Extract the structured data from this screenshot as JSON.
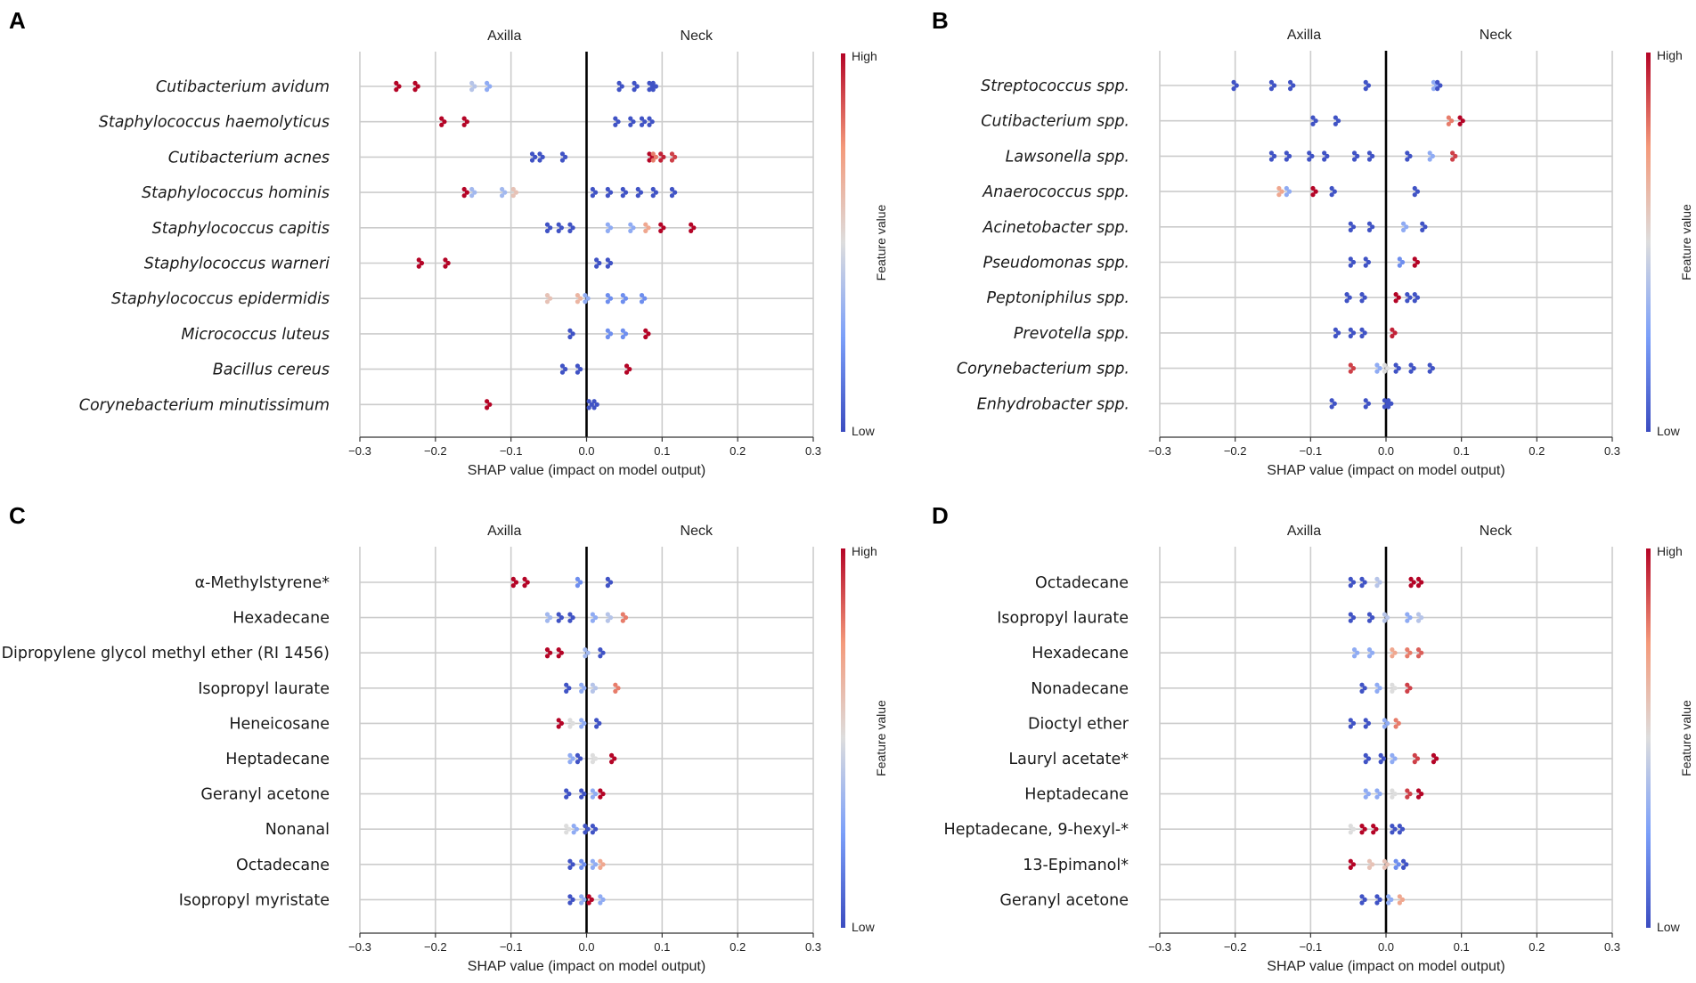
{
  "figure": {
    "colors": {
      "low": "#3b4cc0",
      "mid": "#dddddd",
      "high": "#b40426"
    },
    "colorbar": {
      "high_label": "High",
      "low_label": "Low",
      "title": "Feature value"
    }
  },
  "chart_data": [
    {
      "panel": "A",
      "type": "scatter",
      "subtype": "shap-beeswarm",
      "xlabel": "SHAP value (impact on model output)",
      "left_label": "Axilla",
      "right_label": "Neck",
      "xlim": [
        -0.3,
        0.3
      ],
      "xticks": [
        "−0.3",
        "−0.2",
        "−0.1",
        "0.0",
        "0.1",
        "0.2",
        "0.3"
      ],
      "italic": true,
      "features": [
        {
          "name": "Cutibacterium avidum",
          "points": [
            [
              -0.25,
              1.0
            ],
            [
              -0.225,
              1.0
            ],
            [
              -0.15,
              0.4
            ],
            [
              -0.13,
              0.3
            ],
            [
              0.045,
              0.02
            ],
            [
              0.065,
              0.02
            ],
            [
              0.085,
              0.02
            ],
            [
              0.09,
              0.02
            ]
          ]
        },
        {
          "name": "Staphylococcus haemolyticus",
          "points": [
            [
              -0.19,
              1.0
            ],
            [
              -0.16,
              1.0
            ],
            [
              0.04,
              0.02
            ],
            [
              0.06,
              0.02
            ],
            [
              0.075,
              0.02
            ],
            [
              0.085,
              0.02
            ]
          ]
        },
        {
          "name": "Cutibacterium acnes",
          "points": [
            [
              -0.07,
              0.02
            ],
            [
              -0.06,
              0.02
            ],
            [
              -0.03,
              0.02
            ],
            [
              0.085,
              1.0
            ],
            [
              0.09,
              0.8
            ],
            [
              0.1,
              0.95
            ],
            [
              0.115,
              0.9
            ]
          ]
        },
        {
          "name": "Staphylococcus hominis",
          "points": [
            [
              -0.16,
              1.0
            ],
            [
              -0.15,
              0.35
            ],
            [
              -0.11,
              0.35
            ],
            [
              -0.095,
              0.6
            ],
            [
              0.01,
              0.02
            ],
            [
              0.03,
              0.02
            ],
            [
              0.05,
              0.02
            ],
            [
              0.07,
              0.02
            ],
            [
              0.09,
              0.02
            ],
            [
              0.115,
              0.02
            ]
          ]
        },
        {
          "name": "Staphylococcus capitis",
          "points": [
            [
              -0.05,
              0.02
            ],
            [
              -0.035,
              0.02
            ],
            [
              -0.02,
              0.02
            ],
            [
              0.03,
              0.3
            ],
            [
              0.06,
              0.3
            ],
            [
              0.08,
              0.7
            ],
            [
              0.1,
              1.0
            ],
            [
              0.14,
              1.0
            ]
          ]
        },
        {
          "name": "Staphylococcus warneri",
          "points": [
            [
              -0.22,
              1.0
            ],
            [
              -0.185,
              1.0
            ],
            [
              0.015,
              0.02
            ],
            [
              0.03,
              0.02
            ]
          ]
        },
        {
          "name": "Staphylococcus epidermidis",
          "points": [
            [
              -0.05,
              0.6
            ],
            [
              -0.01,
              0.65
            ],
            [
              0.0,
              0.3
            ],
            [
              0.03,
              0.2
            ],
            [
              0.05,
              0.2
            ],
            [
              0.075,
              0.2
            ]
          ]
        },
        {
          "name": "Micrococcus luteus",
          "points": [
            [
              -0.02,
              0.02
            ],
            [
              0.03,
              0.2
            ],
            [
              0.05,
              0.2
            ],
            [
              0.08,
              1.0
            ]
          ]
        },
        {
          "name": "Bacillus cereus",
          "points": [
            [
              -0.03,
              0.02
            ],
            [
              -0.01,
              0.02
            ],
            [
              0.055,
              1.0
            ]
          ]
        },
        {
          "name": "Corynebacterium minutissimum",
          "points": [
            [
              -0.13,
              1.0
            ],
            [
              0.005,
              0.02
            ],
            [
              0.012,
              0.02
            ]
          ]
        }
      ]
    },
    {
      "panel": "B",
      "type": "scatter",
      "subtype": "shap-beeswarm",
      "xlabel": "SHAP value (impact on model output)",
      "left_label": "Axilla",
      "right_label": "Neck",
      "xlim": [
        -0.3,
        0.3
      ],
      "xticks": [
        "−0.3",
        "−0.2",
        "−0.1",
        "0.0",
        "0.1",
        "0.2",
        "0.3"
      ],
      "italic": true,
      "features": [
        {
          "name": "Streptococcus spp.",
          "points": [
            [
              -0.2,
              0.02
            ],
            [
              -0.15,
              0.02
            ],
            [
              -0.125,
              0.02
            ],
            [
              -0.025,
              0.02
            ],
            [
              0.065,
              0.3
            ],
            [
              0.07,
              0.02
            ]
          ]
        },
        {
          "name": "Cutibacterium spp.",
          "points": [
            [
              -0.095,
              0.02
            ],
            [
              -0.065,
              0.02
            ],
            [
              0.085,
              0.8
            ],
            [
              0.1,
              1.0
            ]
          ]
        },
        {
          "name": "Lawsonella spp.",
          "points": [
            [
              -0.15,
              0.02
            ],
            [
              -0.13,
              0.02
            ],
            [
              -0.1,
              0.02
            ],
            [
              -0.08,
              0.02
            ],
            [
              -0.04,
              0.02
            ],
            [
              -0.02,
              0.02
            ],
            [
              0.03,
              0.02
            ],
            [
              0.06,
              0.3
            ],
            [
              0.09,
              0.9
            ]
          ]
        },
        {
          "name": "Anaerococcus spp.",
          "points": [
            [
              -0.14,
              0.7
            ],
            [
              -0.13,
              0.3
            ],
            [
              -0.095,
              1.0
            ],
            [
              -0.07,
              0.02
            ],
            [
              0.04,
              0.02
            ]
          ]
        },
        {
          "name": "Acinetobacter spp.",
          "points": [
            [
              -0.045,
              0.02
            ],
            [
              -0.02,
              0.02
            ],
            [
              0.025,
              0.3
            ],
            [
              0.05,
              0.02
            ]
          ]
        },
        {
          "name": "Pseudomonas spp.",
          "points": [
            [
              -0.045,
              0.02
            ],
            [
              -0.025,
              0.02
            ],
            [
              0.02,
              0.2
            ],
            [
              0.04,
              1.0
            ]
          ]
        },
        {
          "name": "Peptoniphilus spp.",
          "points": [
            [
              -0.05,
              0.02
            ],
            [
              -0.03,
              0.02
            ],
            [
              0.015,
              1.0
            ],
            [
              0.03,
              0.02
            ],
            [
              0.04,
              0.02
            ]
          ]
        },
        {
          "name": "Prevotella spp.",
          "points": [
            [
              -0.065,
              0.02
            ],
            [
              -0.045,
              0.02
            ],
            [
              -0.03,
              0.02
            ],
            [
              0.01,
              0.95
            ]
          ]
        },
        {
          "name": "Corynebacterium spp.",
          "points": [
            [
              -0.045,
              0.9
            ],
            [
              -0.01,
              0.3
            ],
            [
              0.0,
              0.5
            ],
            [
              0.015,
              0.02
            ],
            [
              0.035,
              0.02
            ],
            [
              0.06,
              0.02
            ]
          ]
        },
        {
          "name": "Enhydrobacter spp.",
          "points": [
            [
              -0.07,
              0.02
            ],
            [
              -0.025,
              0.02
            ],
            [
              0.0,
              0.02
            ],
            [
              0.005,
              0.02
            ]
          ]
        }
      ]
    },
    {
      "panel": "C",
      "type": "scatter",
      "subtype": "shap-beeswarm",
      "xlabel": "SHAP value (impact on model output)",
      "left_label": "Axilla",
      "right_label": "Neck",
      "xlim": [
        -0.3,
        0.3
      ],
      "xticks": [
        "−0.3",
        "−0.2",
        "−0.1",
        "0.0",
        "0.1",
        "0.2",
        "0.3"
      ],
      "italic": false,
      "features": [
        {
          "name": "α-Methylstyrene*",
          "points": [
            [
              -0.095,
              1.0
            ],
            [
              -0.08,
              1.0
            ],
            [
              -0.01,
              0.2
            ],
            [
              0.03,
              0.02
            ]
          ]
        },
        {
          "name": "Hexadecane",
          "points": [
            [
              -0.05,
              0.35
            ],
            [
              -0.035,
              0.02
            ],
            [
              -0.02,
              0.02
            ],
            [
              0.01,
              0.3
            ],
            [
              0.03,
              0.4
            ],
            [
              0.05,
              0.8
            ]
          ]
        },
        {
          "name": "Dipropylene glycol methyl ether (RI 1456)",
          "points": [
            [
              -0.05,
              1.0
            ],
            [
              -0.035,
              1.0
            ],
            [
              0.0,
              0.35
            ],
            [
              0.02,
              0.02
            ]
          ]
        },
        {
          "name": "Isopropyl laurate",
          "points": [
            [
              -0.025,
              0.02
            ],
            [
              -0.005,
              0.3
            ],
            [
              0.01,
              0.4
            ],
            [
              0.04,
              0.8
            ]
          ]
        },
        {
          "name": "Heneicosane",
          "points": [
            [
              -0.035,
              1.0
            ],
            [
              -0.02,
              0.5
            ],
            [
              -0.005,
              0.3
            ],
            [
              0.015,
              0.02
            ]
          ]
        },
        {
          "name": "Heptadecane",
          "points": [
            [
              -0.02,
              0.3
            ],
            [
              -0.01,
              0.02
            ],
            [
              0.01,
              0.5
            ],
            [
              0.035,
              1.0
            ]
          ]
        },
        {
          "name": "Geranyl acetone",
          "points": [
            [
              -0.025,
              0.02
            ],
            [
              -0.005,
              0.02
            ],
            [
              0.01,
              0.3
            ],
            [
              0.02,
              1.0
            ]
          ]
        },
        {
          "name": "Nonanal",
          "points": [
            [
              -0.025,
              0.5
            ],
            [
              -0.015,
              0.3
            ],
            [
              0.0,
              0.02
            ],
            [
              0.01,
              0.02
            ]
          ]
        },
        {
          "name": "Octadecane",
          "points": [
            [
              -0.02,
              0.02
            ],
            [
              -0.005,
              0.2
            ],
            [
              0.01,
              0.3
            ],
            [
              0.02,
              0.7
            ]
          ]
        },
        {
          "name": "Isopropyl myristate",
          "points": [
            [
              -0.02,
              0.02
            ],
            [
              -0.005,
              0.3
            ],
            [
              0.005,
              1.0
            ],
            [
              0.02,
              0.3
            ]
          ]
        }
      ]
    },
    {
      "panel": "D",
      "type": "scatter",
      "subtype": "shap-beeswarm",
      "xlabel": "SHAP value (impact on model output)",
      "left_label": "Axilla",
      "right_label": "Neck",
      "xlim": [
        -0.3,
        0.3
      ],
      "xticks": [
        "−0.3",
        "−0.2",
        "−0.1",
        "0.0",
        "0.1",
        "0.2",
        "0.3"
      ],
      "italic": false,
      "features": [
        {
          "name": "Octadecane",
          "points": [
            [
              -0.045,
              0.02
            ],
            [
              -0.03,
              0.02
            ],
            [
              -0.01,
              0.4
            ],
            [
              0.035,
              1.0
            ],
            [
              0.045,
              1.0
            ]
          ]
        },
        {
          "name": "Isopropyl laurate",
          "points": [
            [
              -0.045,
              0.02
            ],
            [
              -0.02,
              0.02
            ],
            [
              0.0,
              0.4
            ],
            [
              0.03,
              0.3
            ],
            [
              0.045,
              0.4
            ]
          ]
        },
        {
          "name": "Hexadecane",
          "points": [
            [
              -0.04,
              0.3
            ],
            [
              -0.02,
              0.3
            ],
            [
              0.01,
              0.7
            ],
            [
              0.03,
              0.8
            ],
            [
              0.045,
              0.85
            ]
          ]
        },
        {
          "name": "Nonadecane",
          "points": [
            [
              -0.03,
              0.02
            ],
            [
              -0.01,
              0.3
            ],
            [
              0.01,
              0.5
            ],
            [
              0.03,
              0.9
            ]
          ]
        },
        {
          "name": "Dioctyl ether",
          "points": [
            [
              -0.045,
              0.02
            ],
            [
              -0.025,
              0.02
            ],
            [
              0.0,
              0.3
            ],
            [
              0.015,
              0.8
            ]
          ]
        },
        {
          "name": "Lauryl acetate*",
          "points": [
            [
              -0.025,
              0.02
            ],
            [
              -0.005,
              0.02
            ],
            [
              0.01,
              0.3
            ],
            [
              0.04,
              0.9
            ],
            [
              0.065,
              1.0
            ]
          ]
        },
        {
          "name": "Heptadecane",
          "points": [
            [
              -0.025,
              0.3
            ],
            [
              -0.01,
              0.3
            ],
            [
              0.01,
              0.5
            ],
            [
              0.03,
              0.9
            ],
            [
              0.045,
              1.0
            ]
          ]
        },
        {
          "name": "Heptadecane, 9-hexyl-*",
          "points": [
            [
              -0.045,
              0.5
            ],
            [
              -0.03,
              1.0
            ],
            [
              -0.015,
              1.0
            ],
            [
              0.01,
              0.02
            ],
            [
              0.02,
              0.02
            ]
          ]
        },
        {
          "name": "13-Epimanol*",
          "points": [
            [
              -0.045,
              1.0
            ],
            [
              -0.02,
              0.6
            ],
            [
              0.0,
              0.6
            ],
            [
              0.015,
              0.2
            ],
            [
              0.025,
              0.02
            ]
          ]
        },
        {
          "name": "Geranyl acetone",
          "points": [
            [
              -0.03,
              0.02
            ],
            [
              -0.01,
              0.02
            ],
            [
              0.005,
              0.3
            ],
            [
              0.02,
              0.7
            ]
          ]
        }
      ]
    }
  ]
}
